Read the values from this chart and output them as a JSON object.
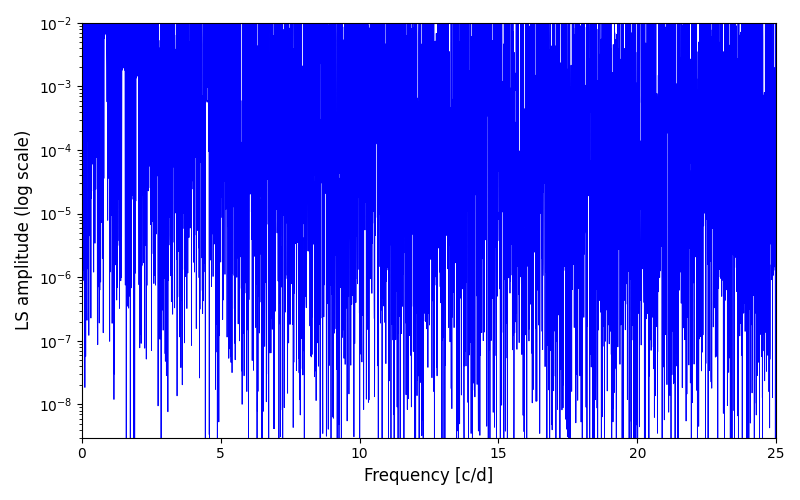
{
  "title": "",
  "xlabel": "Frequency [c/d]",
  "ylabel": "LS amplitude (log scale)",
  "line_color": "#0000ff",
  "xlim": [
    0,
    25
  ],
  "ylim": [
    3e-09,
    0.01
  ],
  "freq_max": 25,
  "n_points": 6000,
  "seed": 7,
  "figsize": [
    8.0,
    5.0
  ],
  "dpi": 100,
  "background_color": "#ffffff",
  "xticks": [
    0,
    5,
    10,
    15,
    20,
    25
  ],
  "linewidth": 0.6
}
